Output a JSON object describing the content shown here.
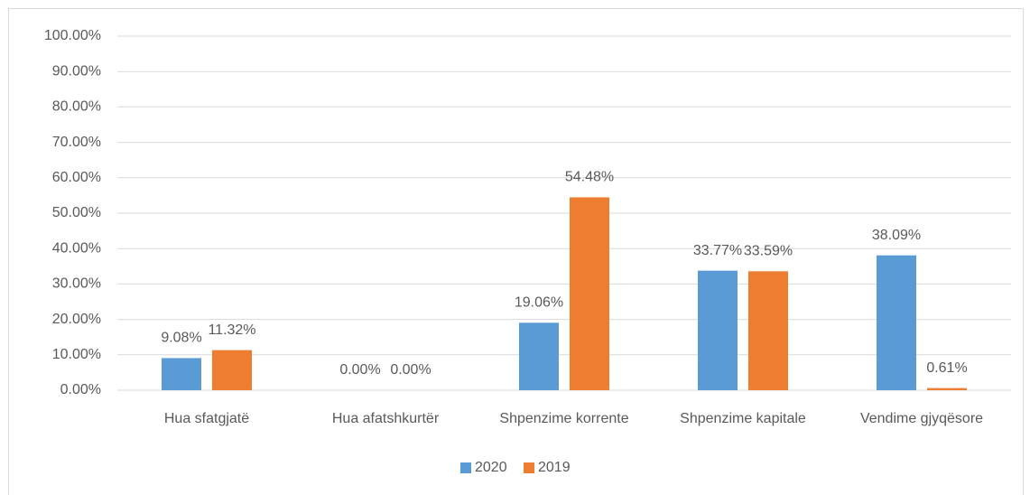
{
  "chart_data": {
    "type": "bar",
    "categories": [
      "Hua sfatgjatë",
      "Hua afatshkurtër",
      "Shpenzime korrente",
      "Shpenzime kapitale",
      "Vendime gjyqësore"
    ],
    "series": [
      {
        "name": "2020",
        "color": "#5b9bd5",
        "values": [
          9.08,
          0,
          19.06,
          33.77,
          38.09
        ],
        "value_labels": [
          "9.08%",
          "0.00%",
          "19.06%",
          "33.77%",
          "38.09%"
        ]
      },
      {
        "name": "2019",
        "color": "#ed7d31",
        "values": [
          11.32,
          0,
          54.48,
          33.59,
          0.61
        ],
        "value_labels": [
          "11.32%",
          "0.00%",
          "54.48%",
          "33.59%",
          "0.61%"
        ]
      }
    ],
    "ylim": [
      0,
      100
    ],
    "yticks": [
      {
        "value": 0,
        "label": "0.00%"
      },
      {
        "value": 10,
        "label": "10.00%"
      },
      {
        "value": 20,
        "label": "20.00%"
      },
      {
        "value": 30,
        "label": "30.00%"
      },
      {
        "value": 40,
        "label": "40.00%"
      },
      {
        "value": 50,
        "label": "50.00%"
      },
      {
        "value": 60,
        "label": "60.00%"
      },
      {
        "value": 70,
        "label": "70.00%"
      },
      {
        "value": 80,
        "label": "80.00%"
      },
      {
        "value": 90,
        "label": "90.00%"
      },
      {
        "value": 100,
        "label": "100.00%"
      }
    ],
    "grid": true,
    "legend": "bottom"
  }
}
